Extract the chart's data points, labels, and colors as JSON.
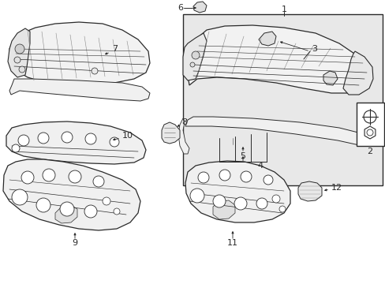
{
  "bg_color": "#ffffff",
  "line_color": "#2a2a2a",
  "part_fill": "#f5f5f5",
  "box_fill": "#e8e8e8",
  "fig_width": 4.89,
  "fig_height": 3.6,
  "dpi": 100
}
